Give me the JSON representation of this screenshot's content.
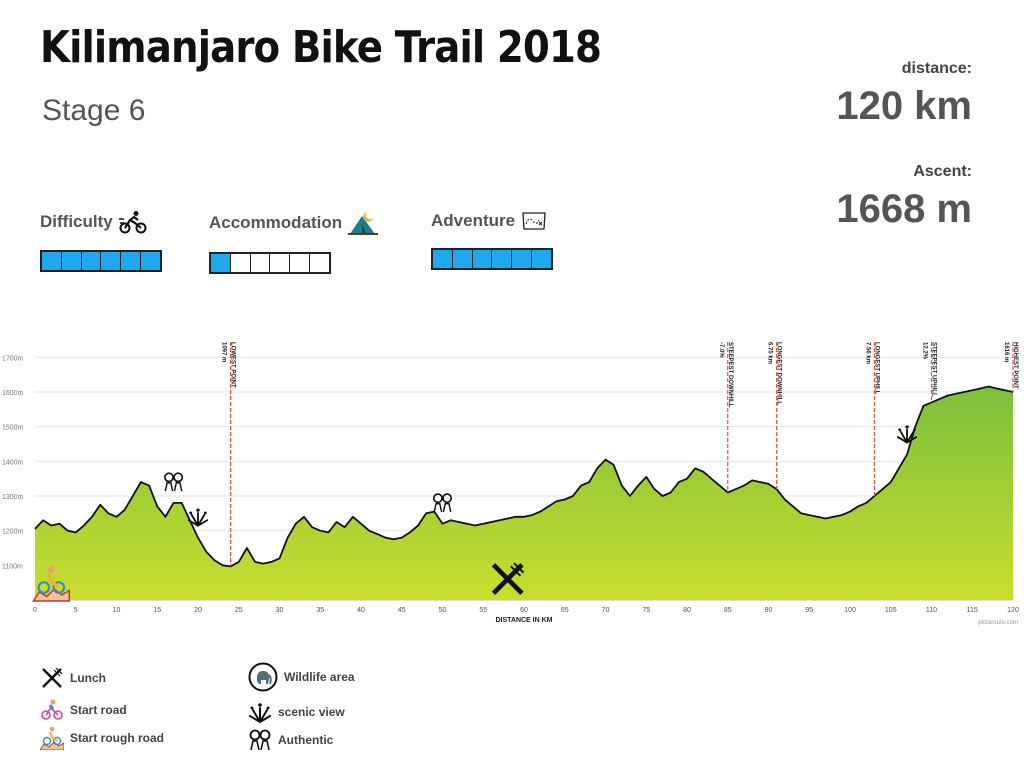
{
  "header": {
    "title": "Kilimanjaro Bike Trail 2018",
    "subtitle": "Stage 6"
  },
  "stats": {
    "distance_label": "distance:",
    "distance_value": "120 km",
    "ascent_label": "Ascent:",
    "ascent_value": "1668 m"
  },
  "ratings": [
    {
      "label": "Difficulty",
      "icon": "cyclist-icon",
      "level": 6,
      "max": 6
    },
    {
      "label": "Accommodation",
      "icon": "tent-icon",
      "level": 1,
      "max": 6
    },
    {
      "label": "Adventure",
      "icon": "map-icon",
      "level": 6,
      "max": 6
    }
  ],
  "colors": {
    "bar_fill": "#1ea8ee",
    "profile_top": "#8cc63f",
    "profile_bottom": "#c5dc2e",
    "marker_line": "#e8552a"
  },
  "chart_data": {
    "type": "area",
    "xlabel": "DISTANCE IN KM",
    "ylabel": "",
    "xlim": [
      0,
      120
    ],
    "ylim": [
      1000,
      1750
    ],
    "x_ticks": [
      0,
      5,
      10,
      15,
      20,
      25,
      30,
      35,
      40,
      45,
      50,
      55,
      60,
      65,
      70,
      75,
      80,
      85,
      90,
      95,
      100,
      105,
      110,
      115,
      120
    ],
    "y_ticks": [
      1100,
      1200,
      1300,
      1400,
      1500,
      1600,
      1700
    ],
    "y_tick_labels": [
      "1100m",
      "1200m",
      "1300m",
      "1400m",
      "1500m",
      "1600m",
      "1700m"
    ],
    "credit": "plotaroute.com",
    "series": [
      {
        "x": [
          0,
          1,
          2,
          3,
          4,
          5,
          6,
          7,
          8,
          9,
          10,
          11,
          12,
          13,
          14,
          15,
          16,
          17,
          18,
          19,
          20,
          21,
          22,
          23,
          24,
          25,
          26,
          27,
          28,
          29,
          30,
          31,
          32,
          33,
          34,
          35,
          36,
          37,
          38,
          39,
          40,
          41,
          42,
          43,
          44,
          45,
          46,
          47,
          48,
          49,
          50,
          51,
          52,
          53,
          54,
          55,
          56,
          57,
          58,
          59,
          60,
          61,
          62,
          63,
          64,
          65,
          66,
          67,
          68,
          69,
          70,
          71,
          72,
          73,
          74,
          75,
          76,
          77,
          78,
          79,
          80,
          81,
          82,
          83,
          84,
          85,
          86,
          87,
          88,
          89,
          90,
          91,
          92,
          93,
          94,
          95,
          96,
          97,
          98,
          99,
          100,
          101,
          102,
          103,
          104,
          105,
          106,
          107,
          108,
          109,
          110,
          111,
          112,
          113,
          114,
          115,
          116,
          117,
          118,
          119,
          120
        ],
        "y": [
          1205,
          1230,
          1215,
          1220,
          1200,
          1195,
          1215,
          1240,
          1275,
          1250,
          1240,
          1260,
          1300,
          1340,
          1330,
          1270,
          1240,
          1280,
          1280,
          1230,
          1180,
          1140,
          1115,
          1100,
          1097,
          1110,
          1150,
          1110,
          1105,
          1110,
          1120,
          1180,
          1220,
          1240,
          1210,
          1200,
          1195,
          1225,
          1210,
          1240,
          1220,
          1200,
          1190,
          1180,
          1175,
          1180,
          1195,
          1215,
          1250,
          1255,
          1220,
          1230,
          1225,
          1220,
          1215,
          1220,
          1225,
          1230,
          1235,
          1240,
          1240,
          1245,
          1255,
          1270,
          1285,
          1290,
          1300,
          1330,
          1340,
          1380,
          1405,
          1390,
          1330,
          1300,
          1330,
          1355,
          1320,
          1300,
          1310,
          1340,
          1350,
          1380,
          1370,
          1350,
          1330,
          1310,
          1320,
          1330,
          1345,
          1340,
          1335,
          1320,
          1290,
          1270,
          1250,
          1245,
          1240,
          1235,
          1240,
          1245,
          1255,
          1270,
          1280,
          1300,
          1320,
          1340,
          1380,
          1420,
          1500,
          1560,
          1570,
          1580,
          1590,
          1595,
          1600,
          1605,
          1610,
          1616,
          1610,
          1605,
          1600
        ]
      }
    ],
    "markers": [
      {
        "x": 24,
        "label": "LOWEST POINT",
        "value": "1097 m"
      },
      {
        "x": 85,
        "label": "STEEPEST DOWNHILL",
        "value": "-7.0%"
      },
      {
        "x": 91,
        "label": "LONGEST DOWNHILL",
        "value": "6.75 km"
      },
      {
        "x": 103,
        "label": "LONGEST UPHILL",
        "value": "7.56 km"
      },
      {
        "x": 110,
        "label": "STEEPEST UPHILL",
        "value": "12.2%"
      },
      {
        "x": 120,
        "label": "HIGHEST POINT",
        "value": "1616 m"
      }
    ],
    "poi": [
      {
        "x": 2,
        "icon": "start-rough-road-icon"
      },
      {
        "x": 17,
        "icon": "authentic-icon"
      },
      {
        "x": 20,
        "icon": "scenic-view-icon"
      },
      {
        "x": 50,
        "icon": "authentic-icon"
      },
      {
        "x": 58,
        "icon": "lunch-icon"
      },
      {
        "x": 107,
        "icon": "scenic-view-icon"
      }
    ]
  },
  "legend": [
    {
      "label": "Lunch",
      "icon": "lunch-icon"
    },
    {
      "label": "Start road",
      "icon": "start-road-icon"
    },
    {
      "label": "Start rough road",
      "icon": "start-rough-road-icon"
    },
    {
      "label": "Wildlife area",
      "icon": "elephant-icon"
    },
    {
      "label": "scenic view",
      "icon": "scenic-view-icon"
    },
    {
      "label": "Authentic",
      "icon": "authentic-icon"
    }
  ]
}
